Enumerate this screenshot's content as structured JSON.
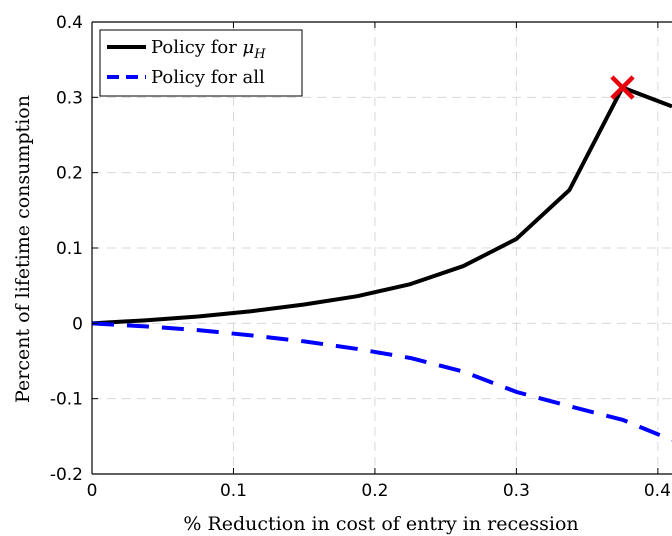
{
  "chart_data": {
    "type": "line",
    "title": "",
    "xlabel": "% Reduction in cost of entry in recession",
    "ylabel": "Percent of lifetime consumption",
    "xlim": [
      0,
      0.41
    ],
    "ylim": [
      -0.2,
      0.4
    ],
    "xticks": [
      0,
      0.1,
      0.2,
      0.3,
      0.4
    ],
    "xtick_labels": [
      "0",
      "0.1",
      "0.2",
      "0.3",
      "0.4"
    ],
    "yticks": [
      -0.2,
      -0.1,
      0,
      0.1,
      0.2,
      0.3,
      0.4
    ],
    "ytick_labels": [
      "-0.2",
      "-0.1",
      "0",
      "0.1",
      "0.2",
      "0.3",
      "0.4"
    ],
    "grid": true,
    "legend_position": "top-left",
    "series": [
      {
        "name": "Policy for μH",
        "color": "#000000",
        "style": "solid",
        "x": [
          0,
          0.0375,
          0.075,
          0.1125,
          0.15,
          0.1875,
          0.225,
          0.2625,
          0.3,
          0.3375,
          0.375,
          0.41
        ],
        "y": [
          0,
          0.004,
          0.009,
          0.016,
          0.025,
          0.036,
          0.052,
          0.076,
          0.112,
          0.177,
          0.313,
          0.288
        ]
      },
      {
        "name": "Policy for all",
        "color": "#0000ff",
        "style": "dashed",
        "x": [
          0,
          0.0375,
          0.075,
          0.1125,
          0.15,
          0.1875,
          0.225,
          0.2625,
          0.3,
          0.3375,
          0.375,
          0.41
        ],
        "y": [
          0,
          -0.004,
          -0.009,
          -0.016,
          -0.024,
          -0.034,
          -0.046,
          -0.064,
          -0.091,
          -0.11,
          -0.128,
          -0.155
        ]
      }
    ],
    "annotations": [
      {
        "marker": "x",
        "color": "#e8000b",
        "x": 0.375,
        "y": 0.313
      }
    ]
  },
  "legend": {
    "items": [
      {
        "prefix": "Policy for ",
        "math": "μ",
        "sub": "H"
      },
      {
        "prefix": "Policy for all",
        "math": "",
        "sub": ""
      }
    ]
  }
}
